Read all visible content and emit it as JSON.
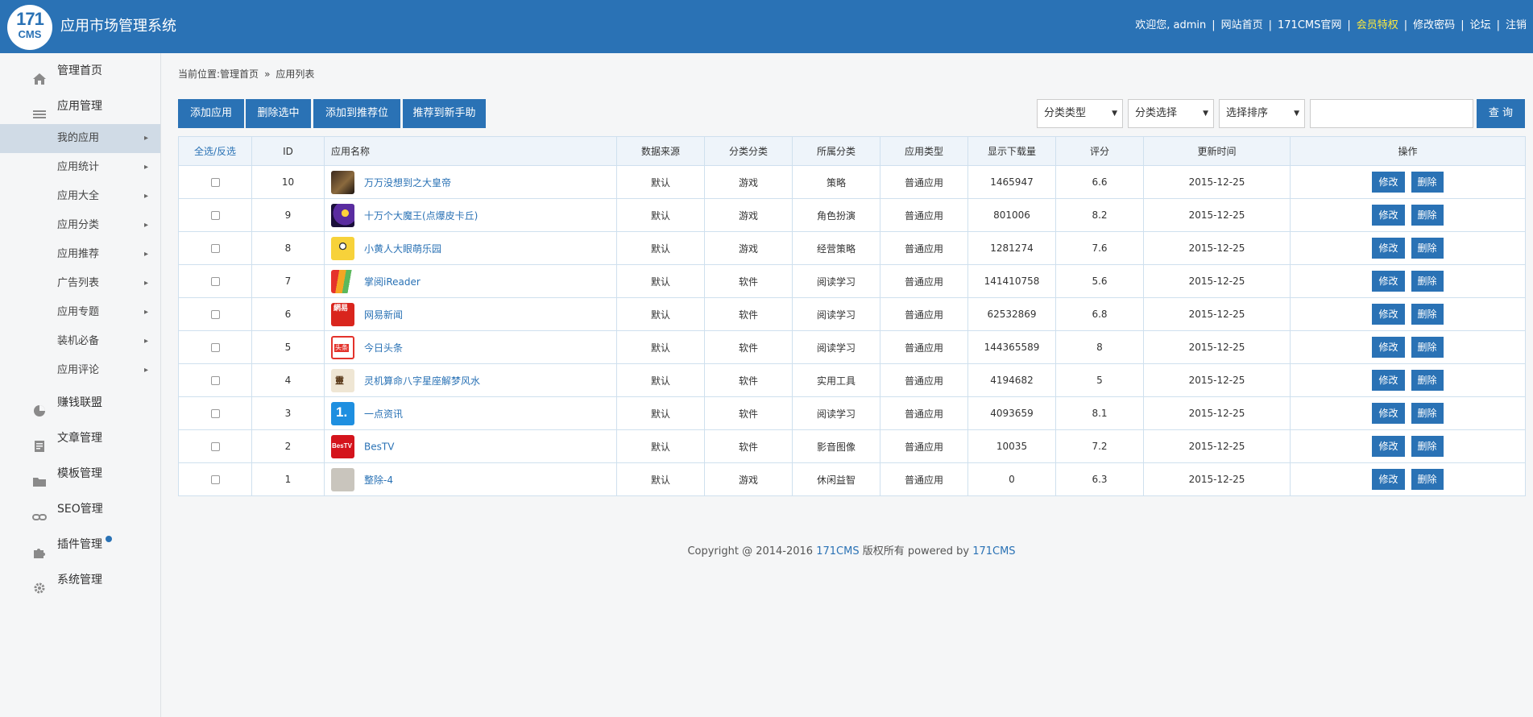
{
  "header": {
    "logo_line1": "171",
    "logo_line2": "CMS",
    "title": "应用市场管理系统",
    "welcome": "欢迎您, admin",
    "links": {
      "site_home": "网站首页",
      "official": "171CMS官网",
      "vip": "会员特权",
      "change_password": "修改密码",
      "forum": "论坛",
      "logout": "注销"
    },
    "vip_color": "#ffeb3b"
  },
  "sidebar": {
    "home": "管理首页",
    "app_manage": "应用管理",
    "sub_items": [
      "我的应用",
      "应用统计",
      "应用大全",
      "应用分类",
      "应用推荐",
      "广告列表",
      "应用专题",
      "装机必备",
      "应用评论"
    ],
    "money": "赚钱联盟",
    "article": "文章管理",
    "template": "模板管理",
    "seo": "SEO管理",
    "plugin": "插件管理",
    "system": "系统管理",
    "active_item": "我的应用"
  },
  "breadcrumb": {
    "prefix": "当前位置:",
    "home": "管理首页",
    "sep": "»",
    "current": "应用列表"
  },
  "toolbar": {
    "add": "添加应用",
    "delete_selected": "删除选中",
    "add_recommend": "添加到推荐位",
    "recommend_newbie": "推荐到新手助",
    "filter_type": "分类类型",
    "filter_category": "分类选择",
    "filter_sort": "选择排序",
    "search_value": "",
    "search": "查 询"
  },
  "table": {
    "headers": {
      "select": "全选/反选",
      "id": "ID",
      "name": "应用名称",
      "source": "数据来源",
      "category_type": "分类分类",
      "category": "所属分类",
      "app_type": "应用类型",
      "downloads": "显示下载量",
      "rating": "评分",
      "updated": "更新时间",
      "actions": "操作"
    },
    "edit_label": "修改",
    "delete_label": "删除",
    "rows": [
      {
        "id": "10",
        "name": "万万没想到之大皇帝",
        "source": "默认",
        "ctype": "游戏",
        "cat": "策略",
        "atype": "普通应用",
        "downloads": "1465947",
        "rating": "6.6",
        "updated": "2015-12-25",
        "icon": "dark-warrior-icon"
      },
      {
        "id": "9",
        "name": "十万个大魔王(点爆皮卡丘)",
        "source": "默认",
        "ctype": "游戏",
        "cat": "角色扮演",
        "atype": "普通应用",
        "downloads": "801006",
        "rating": "8.2",
        "updated": "2015-12-25",
        "icon": "lightning-monster-icon"
      },
      {
        "id": "8",
        "name": "小黄人大眼萌乐园",
        "source": "默认",
        "ctype": "游戏",
        "cat": "经营策略",
        "atype": "普通应用",
        "downloads": "1281274",
        "rating": "7.6",
        "updated": "2015-12-25",
        "icon": "minion-icon"
      },
      {
        "id": "7",
        "name": "掌阅iReader",
        "source": "默认",
        "ctype": "软件",
        "cat": "阅读学习",
        "atype": "普通应用",
        "downloads": "141410758",
        "rating": "5.6",
        "updated": "2015-12-25",
        "icon": "book-pages-icon"
      },
      {
        "id": "6",
        "name": "网易新闻",
        "source": "默认",
        "ctype": "软件",
        "cat": "阅读学习",
        "atype": "普通应用",
        "downloads": "62532869",
        "rating": "6.8",
        "updated": "2015-12-25",
        "icon": "netease-news-icon"
      },
      {
        "id": "5",
        "name": "今日头条",
        "source": "默认",
        "ctype": "软件",
        "cat": "阅读学习",
        "atype": "普通应用",
        "downloads": "144365589",
        "rating": "8",
        "updated": "2015-12-25",
        "icon": "toutiao-icon"
      },
      {
        "id": "4",
        "name": "灵机算命八字星座解梦风水",
        "source": "默认",
        "ctype": "软件",
        "cat": "实用工具",
        "atype": "普通应用",
        "downloads": "4194682",
        "rating": "5",
        "updated": "2015-12-25",
        "icon": "lingji-icon"
      },
      {
        "id": "3",
        "name": "一点资讯",
        "source": "默认",
        "ctype": "软件",
        "cat": "阅读学习",
        "atype": "普通应用",
        "downloads": "4093659",
        "rating": "8.1",
        "updated": "2015-12-25",
        "icon": "yidian-icon"
      },
      {
        "id": "2",
        "name": "BesTV",
        "source": "默认",
        "ctype": "软件",
        "cat": "影音图像",
        "atype": "普通应用",
        "downloads": "10035",
        "rating": "7.2",
        "updated": "2015-12-25",
        "icon": "bestv-icon"
      },
      {
        "id": "1",
        "name": "整除-4",
        "source": "默认",
        "ctype": "游戏",
        "cat": "休闲益智",
        "atype": "普通应用",
        "downloads": "0",
        "rating": "6.3",
        "updated": "2015-12-25",
        "icon": "divisible-icon"
      }
    ]
  },
  "footer": {
    "text1": "Copyright @ 2014-2016 ",
    "brand1": "171CMS",
    "text2": " 版权所有 powered by ",
    "brand2": "171CMS"
  },
  "colors": {
    "primary": "#2a72b5",
    "active_bg": "#d0dbe6",
    "table_border": "#cfe0ee"
  }
}
